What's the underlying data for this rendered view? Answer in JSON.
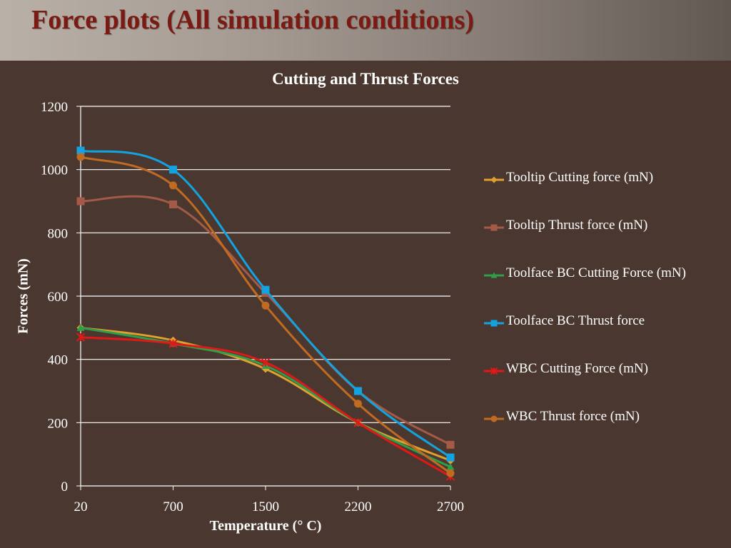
{
  "slide": {
    "title": "Force plots (All simulation conditions)"
  },
  "chart_data": {
    "type": "line",
    "title": "Cutting and Thrust Forces",
    "xlabel": "Temperature (° C)",
    "ylabel": "Forces (mN)",
    "categories": [
      "20",
      "700",
      "1500",
      "2200",
      "2700"
    ],
    "ylim": [
      0,
      1200
    ],
    "yticks": [
      0,
      200,
      400,
      600,
      800,
      1000,
      1200
    ],
    "grid": true,
    "legend_position": "right",
    "series": [
      {
        "name": "Tooltip Cutting force (mN)",
        "values": [
          500,
          460,
          370,
          200,
          80
        ],
        "color": "#e0a030",
        "marker": "diamond"
      },
      {
        "name": "Tooltip Thrust force (mN)",
        "values": [
          900,
          890,
          610,
          300,
          130
        ],
        "color": "#a55a48",
        "marker": "square"
      },
      {
        "name": "Toolface BC Cutting Force (mN)",
        "values": [
          500,
          450,
          380,
          200,
          60
        ],
        "color": "#2e9e4a",
        "marker": "triangle"
      },
      {
        "name": "Toolface BC Thrust force",
        "values": [
          1060,
          1000,
          620,
          300,
          90
        ],
        "color": "#12a3e0",
        "marker": "square"
      },
      {
        "name": "WBC Cutting Force (mN)",
        "values": [
          470,
          450,
          390,
          200,
          30
        ],
        "color": "#e01818",
        "marker": "star"
      },
      {
        "name": "WBC Thrust force (mN)",
        "values": [
          1040,
          950,
          570,
          260,
          40
        ],
        "color": "#c06a22",
        "marker": "circle"
      }
    ]
  }
}
